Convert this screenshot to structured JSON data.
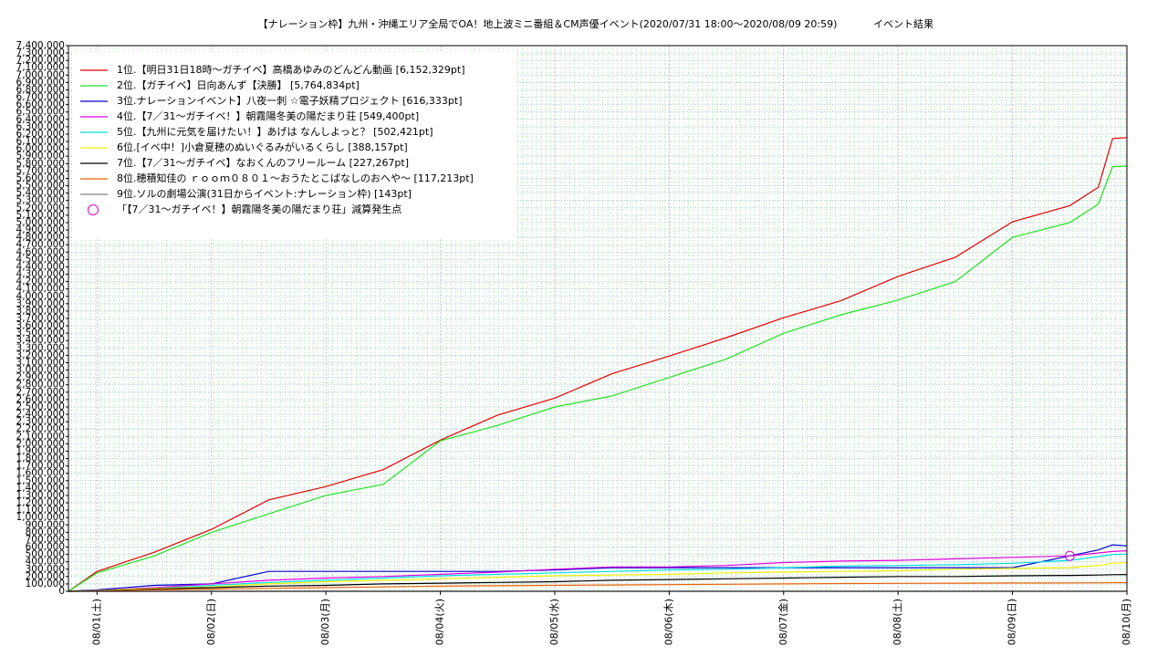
{
  "chart_data": {
    "type": "line",
    "title": "【ナレーション枠】九州・沖縄エリア全局でOA！地上波ミニ番組＆CM声優イベント(2020/07/31 18:00～2020/08/09 20:59)",
    "subtitle": "イベント結果",
    "x": [
      "2020/07/31 18:00",
      "2020/08/01 00:00",
      "2020/08/01 12:00",
      "2020/08/02 00:00",
      "2020/08/02 12:00",
      "2020/08/03 00:00",
      "2020/08/03 12:00",
      "2020/08/04 00:00",
      "2020/08/04 12:00",
      "2020/08/05 00:00",
      "2020/08/05 12:00",
      "2020/08/06 00:00",
      "2020/08/06 12:00",
      "2020/08/07 00:00",
      "2020/08/07 12:00",
      "2020/08/08 00:00",
      "2020/08/08 12:00",
      "2020/08/09 00:00",
      "2020/08/09 12:00",
      "2020/08/09 18:00",
      "2020/08/09 21:00",
      "2020/08/10 00:00"
    ],
    "series": [
      {
        "name": "1位.【明日31日18時～ガチイベ】高橋あゆみのどんどん動画 [6,152,329pt]",
        "color": "#e00000",
        "values": [
          0,
          270000,
          530000,
          840000,
          1240000,
          1420000,
          1650000,
          2050000,
          2390000,
          2620000,
          2950000,
          3190000,
          3440000,
          3710000,
          3940000,
          4270000,
          4530000,
          5010000,
          5230000,
          5480000,
          6140000,
          6152329
        ]
      },
      {
        "name": "2位.【ガチイベ】日向あんず【決勝】 [5,764,834pt]",
        "color": "#22e022",
        "values": [
          0,
          250000,
          480000,
          800000,
          1050000,
          1300000,
          1450000,
          2040000,
          2250000,
          2500000,
          2650000,
          2900000,
          3150000,
          3500000,
          3750000,
          3950000,
          4200000,
          4800000,
          5000000,
          5250000,
          5760000,
          5764834
        ]
      },
      {
        "name": "3位.ナレーションイベント】八夜一刺 ☆電子妖精プロジェクト [616,333pt]",
        "color": "#0000d0",
        "values": [
          0,
          20000,
          80000,
          100000,
          270000,
          270000,
          270000,
          270000,
          270000,
          290000,
          320000,
          320000,
          320000,
          320000,
          320000,
          320000,
          320000,
          320000,
          480000,
          560000,
          630000,
          616333
        ]
      },
      {
        "name": "4位.【7／31～ガチイベ！】朝霧陽冬美の陽だまり荘 [549,400pt]",
        "color": "#e000e0",
        "values": [
          0,
          10000,
          50000,
          100000,
          150000,
          180000,
          200000,
          230000,
          260000,
          300000,
          330000,
          330000,
          350000,
          390000,
          410000,
          420000,
          440000,
          460000,
          480000,
          520000,
          540000,
          549400
        ]
      },
      {
        "name": "5位.【九州に元気を届けたい！】あげは なんしよっと？ [502,421pt]",
        "color": "#00e0e0",
        "values": [
          0,
          10000,
          40000,
          80000,
          120000,
          150000,
          180000,
          210000,
          230000,
          250000,
          270000,
          290000,
          300000,
          320000,
          340000,
          350000,
          360000,
          380000,
          420000,
          470000,
          500000,
          502421
        ]
      },
      {
        "name": "6位.[イベ中！]小倉夏穂のぬいぐるみがいるくらし [388,157pt]",
        "color": "#f0f000",
        "values": [
          0,
          10000,
          40000,
          60000,
          100000,
          130000,
          150000,
          170000,
          190000,
          210000,
          220000,
          230000,
          250000,
          260000,
          270000,
          280000,
          300000,
          310000,
          320000,
          350000,
          380000,
          388157
        ]
      },
      {
        "name": "7位.【7／31～ガチイベ】なおくんのフリールーム [227,267pt]",
        "color": "#000000",
        "values": [
          0,
          5000,
          30000,
          50000,
          70000,
          80000,
          100000,
          110000,
          120000,
          130000,
          150000,
          160000,
          170000,
          180000,
          190000,
          200000,
          200000,
          210000,
          215000,
          220000,
          225000,
          227267
        ]
      },
      {
        "name": "8位.穂積知佳の ｒｏｏｍ０８０１～おうたとこばなしのおへや～ [117,213pt]",
        "color": "#f06000",
        "values": [
          0,
          5000,
          20000,
          30000,
          40000,
          50000,
          60000,
          70000,
          75000,
          80000,
          85000,
          90000,
          95000,
          100000,
          105000,
          108000,
          110000,
          112000,
          114000,
          115000,
          117000,
          117213
        ]
      },
      {
        "name": "9位.ソルの劇場公演(31日からイベント:ナレーション枠) [143pt]",
        "color": "#808080",
        "values": [
          0,
          0,
          0,
          0,
          0,
          0,
          0,
          0,
          0,
          0,
          0,
          0,
          0,
          0,
          0,
          0,
          0,
          0,
          0,
          0,
          0,
          143
        ]
      }
    ],
    "annotation": {
      "label": "「【7／31～ガチイベ！】朝霧陽冬美の陽だまり荘」減算発生点",
      "x": "2020/08/09 12:00",
      "y": 480000,
      "color": "#e000e0"
    },
    "xlim": [
      "2020/07/31 18:00",
      "2020/08/10 00:00"
    ],
    "xticks": [
      {
        "value": "2020/08/01 00:00",
        "label": "08/01(土)"
      },
      {
        "value": "2020/08/02 00:00",
        "label": "08/02(日)"
      },
      {
        "value": "2020/08/03 00:00",
        "label": "08/03(月)"
      },
      {
        "value": "2020/08/04 00:00",
        "label": "08/04(火)"
      },
      {
        "value": "2020/08/05 00:00",
        "label": "08/05(水)"
      },
      {
        "value": "2020/08/06 00:00",
        "label": "08/06(木)"
      },
      {
        "value": "2020/08/07 00:00",
        "label": "08/07(金)"
      },
      {
        "value": "2020/08/08 00:00",
        "label": "08/08(土)"
      },
      {
        "value": "2020/08/09 00:00",
        "label": "08/09(日)"
      },
      {
        "value": "2020/08/10 00:00",
        "label": "08/10(月)"
      }
    ],
    "ylim": [
      0,
      7400000
    ],
    "yticks": [
      0,
      {
        "value": 100000,
        "label": "100,000"
      },
      {
        "value": 200000,
        "label": "200,000"
      },
      {
        "value": 300000,
        "label": "300,000"
      },
      {
        "value": 400000,
        "label": "400,000"
      },
      {
        "value": 500000,
        "label": "500,000"
      },
      {
        "value": 600000,
        "label": "600,000"
      },
      {
        "value": 700000,
        "label": "700,000"
      },
      {
        "value": 800000,
        "label": "800,000"
      },
      {
        "value": 900000,
        "label": "900,000"
      },
      {
        "value": 1000000,
        "label": "1,000,000"
      },
      {
        "value": 1100000,
        "label": "1,100,000"
      },
      {
        "value": 1200000,
        "label": "1,200,000"
      },
      {
        "value": 1300000,
        "label": "1,300,000"
      },
      {
        "value": 1400000,
        "label": "1,400,000"
      },
      {
        "value": 1500000,
        "label": "1,500,000"
      },
      {
        "value": 1600000,
        "label": "1,600,000"
      },
      {
        "value": 1700000,
        "label": "1,700,000"
      },
      {
        "value": 1800000,
        "label": "1,800,000"
      },
      {
        "value": 1900000,
        "label": "1,900,000"
      },
      {
        "value": 2000000,
        "label": "2,000,000"
      },
      {
        "value": 2100000,
        "label": "2,100,000"
      },
      {
        "value": 2200000,
        "label": "2,200,000"
      },
      {
        "value": 2300000,
        "label": "2,300,000"
      },
      {
        "value": 2400000,
        "label": "2,400,000"
      },
      {
        "value": 2500000,
        "label": "2,500,000"
      },
      {
        "value": 2600000,
        "label": "2,600,000"
      },
      {
        "value": 2700000,
        "label": "2,700,000"
      },
      {
        "value": 2800000,
        "label": "2,800,000"
      },
      {
        "value": 2900000,
        "label": "2,900,000"
      },
      {
        "value": 3000000,
        "label": "3,000,000"
      },
      {
        "value": 3100000,
        "label": "3,100,000"
      },
      {
        "value": 3200000,
        "label": "3,200,000"
      },
      {
        "value": 3300000,
        "label": "3,300,000"
      },
      {
        "value": 3400000,
        "label": "3,400,000"
      },
      {
        "value": 3500000,
        "label": "3,500,000"
      },
      {
        "value": 3600000,
        "label": "3,600,000"
      },
      {
        "value": 3700000,
        "label": "3,700,000"
      },
      {
        "value": 3800000,
        "label": "3,800,000"
      },
      {
        "value": 3900000,
        "label": "3,900,000"
      },
      {
        "value": 4000000,
        "label": "4,000,000"
      },
      {
        "value": 4100000,
        "label": "4,100,000"
      },
      {
        "value": 4200000,
        "label": "4,200,000"
      },
      {
        "value": 4300000,
        "label": "4,300,000"
      },
      {
        "value": 4400000,
        "label": "4,400,000"
      },
      {
        "value": 4500000,
        "label": "4,500,000"
      },
      {
        "value": 4600000,
        "label": "4,600,000"
      },
      {
        "value": 4700000,
        "label": "4,700,000"
      },
      {
        "value": 4800000,
        "label": "4,800,000"
      },
      {
        "value": 4900000,
        "label": "4,900,000"
      },
      {
        "value": 5000000,
        "label": "5,000,000"
      },
      {
        "value": 5100000,
        "label": "5,100,000"
      },
      {
        "value": 5200000,
        "label": "5,200,000"
      },
      {
        "value": 5300000,
        "label": "5,300,000"
      },
      {
        "value": 5400000,
        "label": "5,400,000"
      },
      {
        "value": 5500000,
        "label": "5,500,000"
      },
      {
        "value": 5600000,
        "label": "5,600,000"
      },
      {
        "value": 5700000,
        "label": "5,700,000"
      },
      {
        "value": 5800000,
        "label": "5,800,000"
      },
      {
        "value": 5900000,
        "label": "5,900,000"
      },
      {
        "value": 6000000,
        "label": "6,000,000"
      },
      {
        "value": 6100000,
        "label": "6,100,000"
      },
      {
        "value": 6200000,
        "label": "6,200,000"
      },
      {
        "value": 6300000,
        "label": "6,300,000"
      },
      {
        "value": 6400000,
        "label": "6,400,000"
      },
      {
        "value": 6500000,
        "label": "6,500,000"
      },
      {
        "value": 6600000,
        "label": "6,600,000"
      },
      {
        "value": 6700000,
        "label": "6,700,000"
      },
      {
        "value": 6800000,
        "label": "6,800,000"
      },
      {
        "value": 6900000,
        "label": "6,900,000"
      },
      {
        "value": 7000000,
        "label": "7,000,000"
      },
      {
        "value": 7100000,
        "label": "7,100,000"
      },
      {
        "value": 7200000,
        "label": "7,200,000"
      },
      {
        "value": 7300000,
        "label": "7,300,000"
      },
      {
        "value": 7400000,
        "label": "7,400,000"
      }
    ],
    "grid": true
  }
}
